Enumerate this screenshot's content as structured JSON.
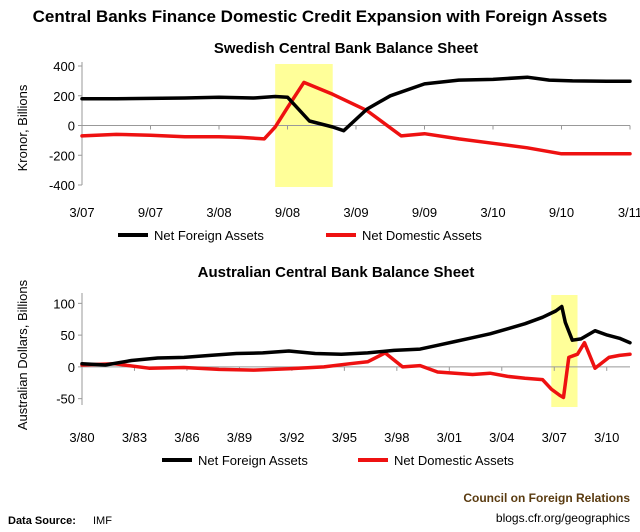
{
  "title": "Central Banks Finance Domestic Credit Expansion with Foreign Assets",
  "source_label": "Data Source:",
  "source_value": "IMF",
  "credit_org": "Council on Foreign Relations",
  "credit_url": "blogs.cfr.org/geographics",
  "colors": {
    "foreign": "#000000",
    "domestic": "#ee1111",
    "highlight": "#ffff99"
  },
  "chart_data": [
    {
      "type": "line",
      "title": "Swedish Central Bank Balance Sheet",
      "xlabel": "",
      "ylabel": "Kronor, Billions",
      "xlim": [
        2007.17,
        2011.17
      ],
      "ylim": [
        -400,
        400
      ],
      "yticks": [
        "400",
        "200",
        "0",
        "-200",
        "-400"
      ],
      "ytick_values": [
        400,
        200,
        0,
        -200,
        -400
      ],
      "xticks": [
        "3/07",
        "9/07",
        "3/08",
        "9/08",
        "3/09",
        "9/09",
        "3/10",
        "9/10",
        "3/11"
      ],
      "xtick_values": [
        2007.17,
        2007.67,
        2008.17,
        2008.67,
        2009.17,
        2009.67,
        2010.17,
        2010.67,
        2011.17
      ],
      "highlight": [
        2008.58,
        2009.0
      ],
      "legend_position": "bottom",
      "series": [
        {
          "name": "Net Foreign Assets",
          "color": "#000000",
          "x": [
            2007.17,
            2007.42,
            2007.67,
            2007.92,
            2008.17,
            2008.42,
            2008.58,
            2008.67,
            2008.83,
            2009.0,
            2009.08,
            2009.25,
            2009.42,
            2009.67,
            2009.92,
            2010.17,
            2010.42,
            2010.58,
            2010.75,
            2011.0,
            2011.17
          ],
          "y": [
            180,
            180,
            182,
            185,
            190,
            185,
            195,
            190,
            30,
            -10,
            -35,
            110,
            200,
            280,
            305,
            310,
            325,
            305,
            300,
            298,
            298
          ]
        },
        {
          "name": "Net Domestic Assets",
          "color": "#ee1111",
          "x": [
            2007.17,
            2007.42,
            2007.67,
            2007.92,
            2008.17,
            2008.33,
            2008.5,
            2008.58,
            2008.67,
            2008.79,
            2009.0,
            2009.25,
            2009.5,
            2009.67,
            2009.92,
            2010.17,
            2010.42,
            2010.67,
            2010.92,
            2011.17
          ],
          "y": [
            -70,
            -60,
            -65,
            -75,
            -75,
            -80,
            -90,
            -10,
            120,
            290,
            210,
            100,
            -70,
            -55,
            -90,
            -120,
            -150,
            -190,
            -190,
            -190
          ]
        }
      ]
    },
    {
      "type": "line",
      "title": "Australian Central Bank Balance Sheet",
      "xlabel": "",
      "ylabel": "Australian Dollars, Billions",
      "xlim": [
        1980.17,
        2011.5
      ],
      "ylim": [
        -60,
        110
      ],
      "yticks": [
        "100",
        "50",
        "0",
        "-50"
      ],
      "ytick_values": [
        100,
        50,
        0,
        -50
      ],
      "xticks": [
        "3/80",
        "3/83",
        "3/86",
        "3/89",
        "3/92",
        "3/95",
        "3/98",
        "3/01",
        "3/04",
        "3/07",
        "3/10"
      ],
      "xtick_values": [
        1980.17,
        1983.17,
        1986.17,
        1989.17,
        1992.17,
        1995.17,
        1998.17,
        2001.17,
        2004.17,
        2007.17,
        2010.17
      ],
      "highlight": [
        2007.0,
        2008.5
      ],
      "legend_position": "bottom",
      "series": [
        {
          "name": "Net Foreign Assets",
          "color": "#000000",
          "x": [
            1980.17,
            1981.5,
            1983.0,
            1984.5,
            1986.0,
            1987.5,
            1989.0,
            1990.5,
            1992.0,
            1993.5,
            1995.0,
            1996.5,
            1998.0,
            1999.5,
            2000.5,
            2001.5,
            2002.5,
            2003.5,
            2004.5,
            2005.5,
            2006.5,
            2007.25,
            2007.6,
            2007.8,
            2008.2,
            2008.7,
            2009.5,
            2010.2,
            2010.9,
            2011.5
          ],
          "y": [
            5,
            3,
            10,
            14,
            15,
            18,
            21,
            22,
            25,
            21,
            20,
            22,
            26,
            28,
            34,
            40,
            46,
            52,
            60,
            68,
            78,
            88,
            95,
            70,
            42,
            44,
            57,
            50,
            45,
            38
          ]
        },
        {
          "name": "Net Domestic Assets",
          "color": "#ee1111",
          "x": [
            1980.17,
            1982.0,
            1984.0,
            1986.0,
            1988.0,
            1990.0,
            1992.0,
            1994.0,
            1995.5,
            1996.5,
            1997.5,
            1998.5,
            1999.5,
            2000.5,
            2001.5,
            2002.5,
            2003.5,
            2004.5,
            2005.5,
            2006.5,
            2007.0,
            2007.5,
            2007.7,
            2008.0,
            2008.5,
            2008.9,
            2009.5,
            2010.3,
            2010.9,
            2011.5
          ],
          "y": [
            3,
            5,
            -2,
            -1,
            -4,
            -5,
            -3,
            0,
            5,
            8,
            22,
            0,
            2,
            -8,
            -10,
            -12,
            -10,
            -15,
            -18,
            -20,
            -35,
            -45,
            -48,
            15,
            20,
            38,
            -2,
            15,
            18,
            20
          ]
        }
      ]
    }
  ]
}
